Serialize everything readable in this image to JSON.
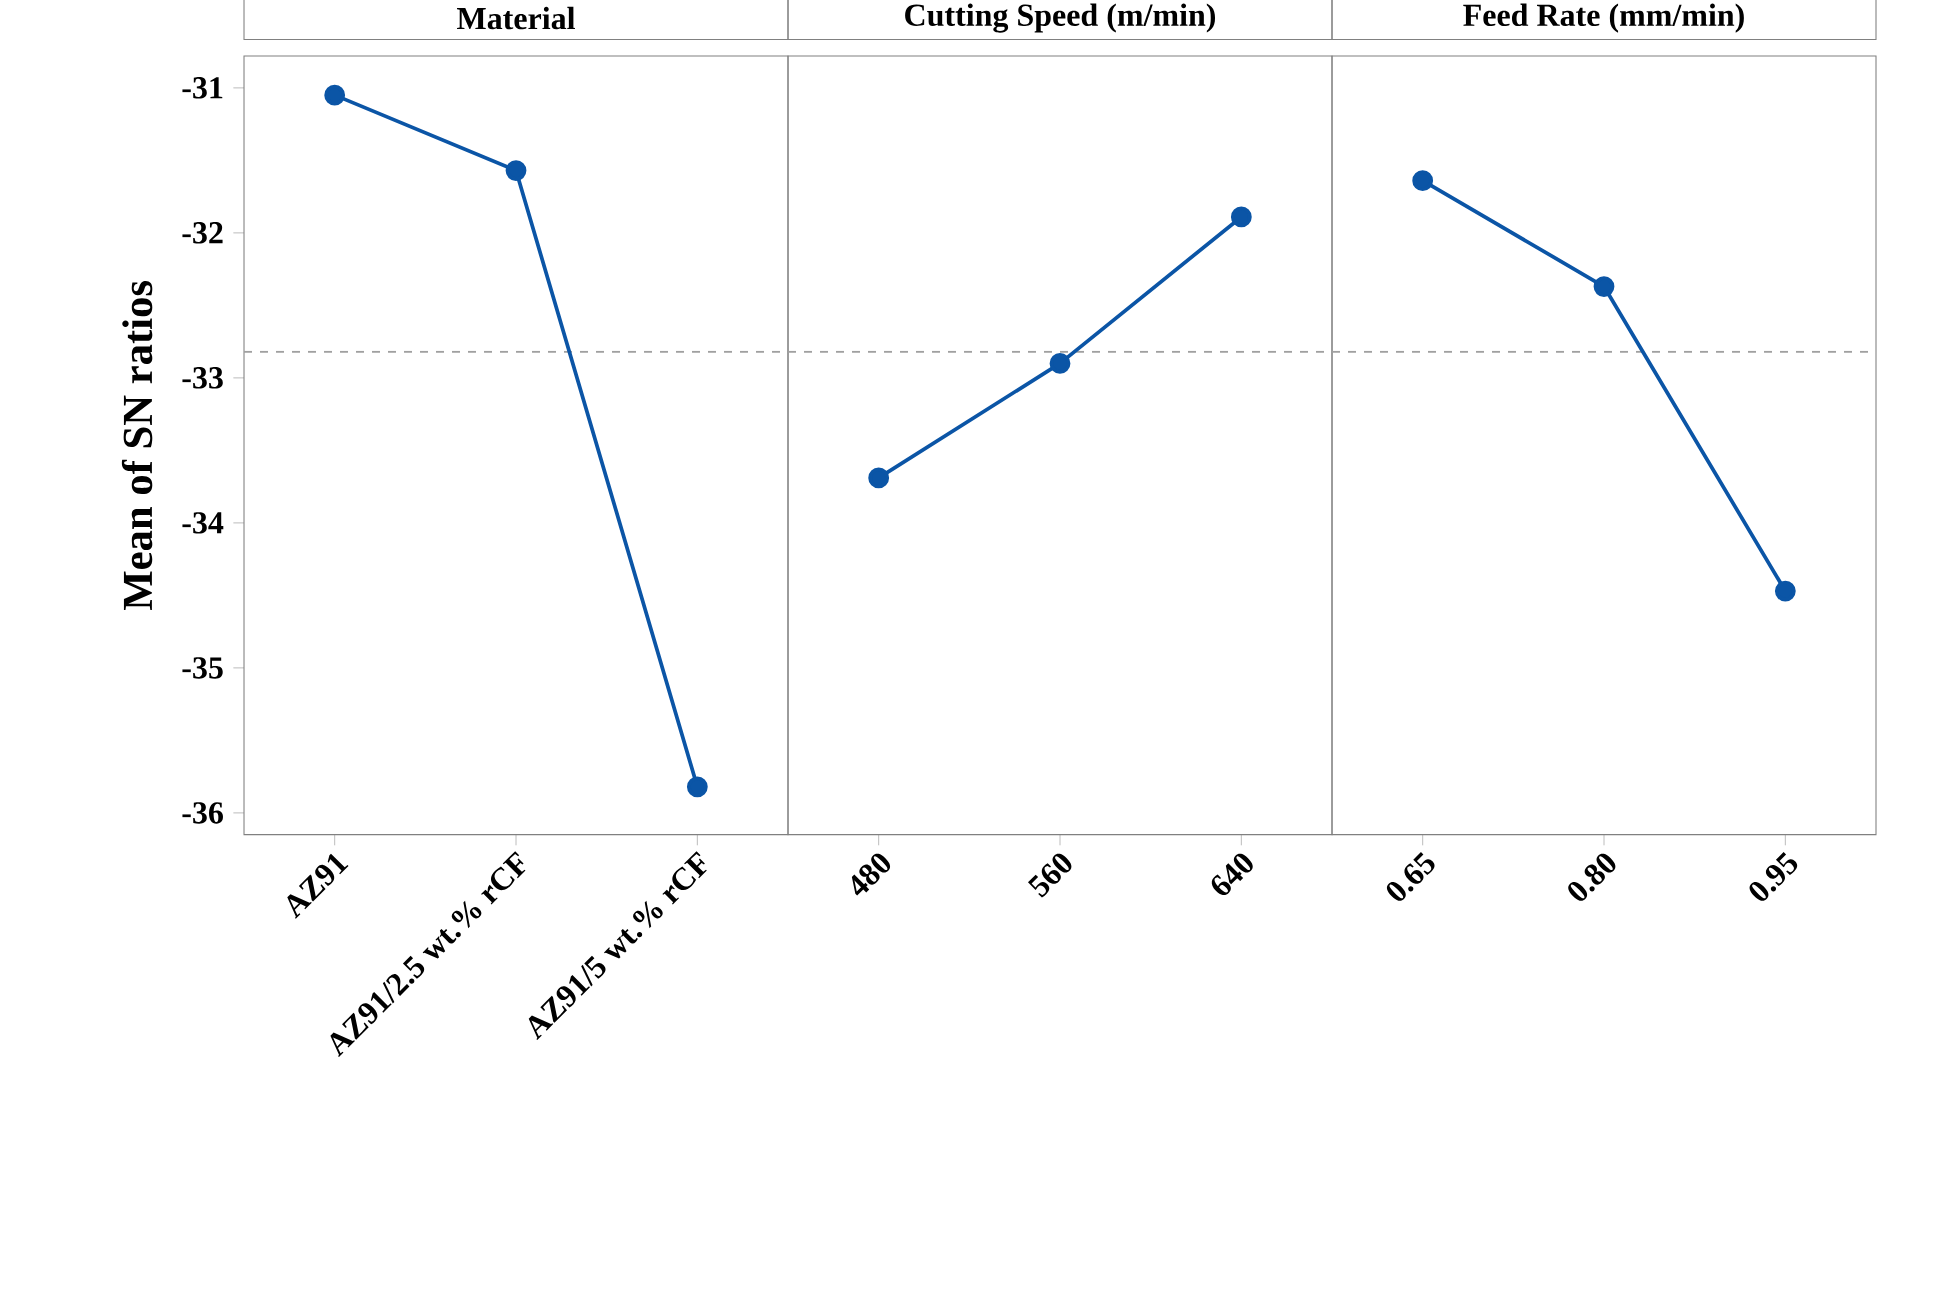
{
  "chart_data": [
    {
      "type": "line",
      "title": "Material",
      "ylabel": "Mean of SN ratios",
      "categories": [
        "AZ91",
        "AZ91/2.5 wt.% rCF",
        "AZ91/5 wt.% rCF"
      ],
      "series": [
        {
          "color": "#0b55a6",
          "values": [
            -31.05,
            -31.57,
            -35.82
          ]
        }
      ],
      "ylim": [
        -36.15,
        -30.78
      ],
      "yticks": [
        -36,
        -35,
        -34,
        -33,
        -32,
        -31
      ],
      "marker": "circle",
      "line_style": "solid",
      "ref_lines": [
        {
          "axis": "y",
          "value": -32.82,
          "color": "#a0a0a0",
          "line_style": "dashed"
        }
      ]
    },
    {
      "type": "line",
      "title": "Cutting Speed (m/min)",
      "categories": [
        "480",
        "560",
        "640"
      ],
      "series": [
        {
          "color": "#0b55a6",
          "values": [
            -33.69,
            -32.9,
            -31.89
          ]
        }
      ],
      "ylim": [
        -36.15,
        -30.78
      ],
      "tick_labels": "x",
      "marker": "circle",
      "line_style": "solid",
      "ref_lines": [
        {
          "axis": "y",
          "value": -32.82,
          "color": "#a0a0a0",
          "line_style": "dashed"
        }
      ]
    },
    {
      "type": "line",
      "title": "Feed Rate (mm/min)",
      "categories": [
        "0.65",
        "0.80",
        "0.95"
      ],
      "series": [
        {
          "color": "#0b55a6",
          "values": [
            -31.64,
            -32.37,
            -34.47
          ]
        }
      ],
      "ylim": [
        -36.15,
        -30.78
      ],
      "tick_labels": "x",
      "marker": "circle",
      "line_style": "solid",
      "ref_lines": [
        {
          "axis": "y",
          "value": -32.82,
          "color": "#a0a0a0",
          "line_style": "dashed"
        }
      ]
    }
  ]
}
